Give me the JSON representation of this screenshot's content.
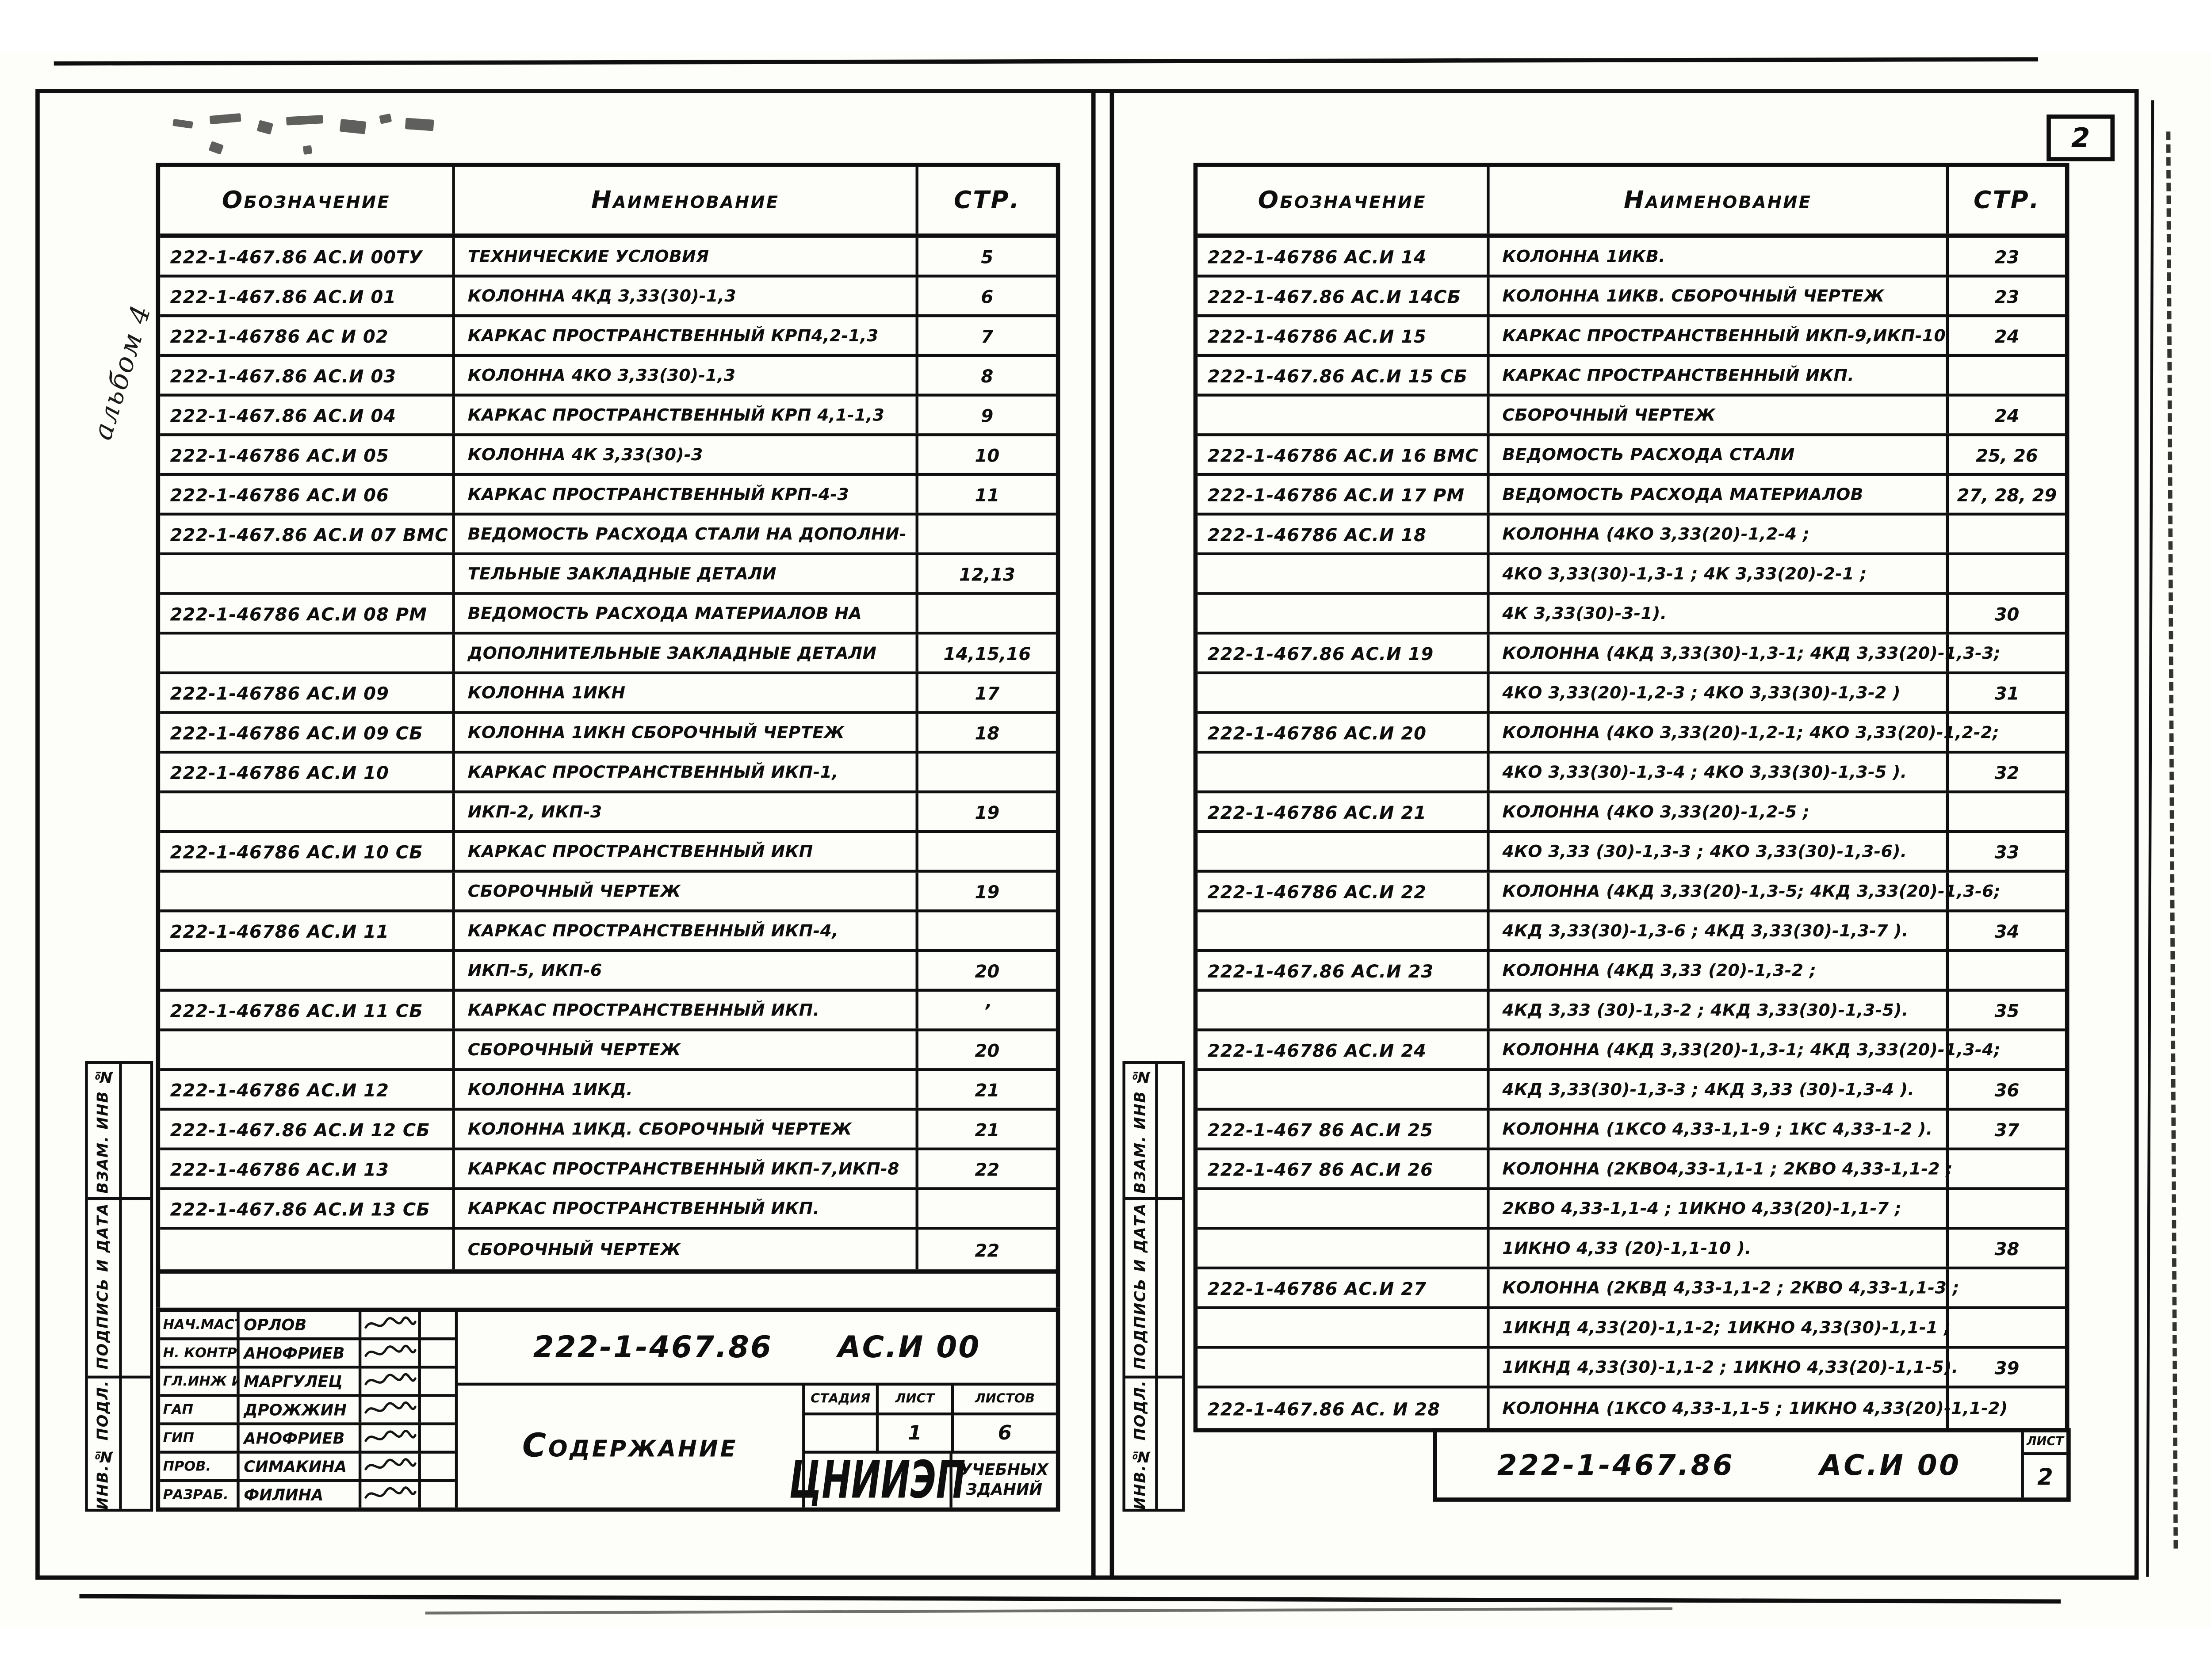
{
  "corner": {
    "page_number": "2"
  },
  "table_headers": {
    "designation": "Обозначение",
    "name": "Наименование",
    "page": "СТР."
  },
  "margin_labels": {
    "top": "ВЗАМ. ИНВ №",
    "middle": "ПОДПИСЬ И ДАТА",
    "bottom": "ИНВ.№ ПОДЛ.",
    "handwritten_note": "альбом 4"
  },
  "left_table": {
    "rows": [
      {
        "d": "222-1-467.86 АС.И 00ТУ",
        "n": "ТЕХНИЧЕСКИЕ  УСЛОВИЯ",
        "p": "5"
      },
      {
        "d": "222-1-467.86  АС.И 01",
        "n": "КОЛОННА  4КД 3,33(30)-1,3",
        "p": "6"
      },
      {
        "d": "222-1-46786  АС И 02",
        "n": "КАРКАС  ПРОСТРАНСТВЕННЫЙ  КРП4,2-1,3",
        "p": "7"
      },
      {
        "d": "222-1-467.86  АС.И 03",
        "n": "КОЛОННА  4КО 3,33(30)-1,3",
        "p": "8"
      },
      {
        "d": "222-1-467.86  АС.И 04",
        "n": "КАРКАС  ПРОСТРАНСТВЕННЫЙ  КРП 4,1-1,3",
        "p": "9"
      },
      {
        "d": "222-1-46786  АС.И 05",
        "n": "КОЛОННА  4К 3,33(30)-3",
        "p": "10"
      },
      {
        "d": "222-1-46786  АС.И 06",
        "n": "КАРКАС  ПРОСТРАНСТВЕННЫЙ  КРП-4-3",
        "p": "11"
      },
      {
        "d": "222-1-467.86  АС.И 07 ВМС",
        "n": "ВЕДОМОСТЬ  РАСХОДА  СТАЛИ  НА  ДОПОЛНИ-",
        "p": ""
      },
      {
        "d": "",
        "n": "ТЕЛЬНЫЕ  ЗАКЛАДНЫЕ  ДЕТАЛИ",
        "p": "12,13"
      },
      {
        "d": "222-1-46786  АС.И 08 РМ",
        "n": "ВЕДОМОСТЬ  РАСХОДА  МАТЕРИАЛОВ  НА",
        "p": ""
      },
      {
        "d": "",
        "n": "ДОПОЛНИТЕЛЬНЫЕ  ЗАКЛАДНЫЕ  ДЕТАЛИ",
        "p": "14,15,16"
      },
      {
        "d": "222-1-46786 АС.И 09",
        "n": "КОЛОННА  1ИКН",
        "p": "17"
      },
      {
        "d": "222-1-46786  АС.И 09 СБ",
        "n": "КОЛОННА 1ИКН СБОРОЧНЫЙ  ЧЕРТЕЖ",
        "p": "18"
      },
      {
        "d": "222-1-46786  АС.И 10",
        "n": "КАРКАС ПРОСТРАНСТВЕННЫЙ  ИКП-1,",
        "p": ""
      },
      {
        "d": "",
        "n": "ИКП-2, ИКП-3",
        "p": "19"
      },
      {
        "d": "222-1-46786  АС.И 10 СБ",
        "n": "КАРКАС ПРОСТРАНСТВЕННЫЙ   ИКП",
        "p": ""
      },
      {
        "d": "",
        "n": "СБОРОЧНЫЙ  ЧЕРТЕЖ",
        "p": "19"
      },
      {
        "d": "222-1-46786  АС.И 11",
        "n": "КАРКАС  ПРОСТРАНСТВЕННЫЙ ИКП-4,",
        "p": ""
      },
      {
        "d": "",
        "n": "ИКП-5, ИКП-6",
        "p": "20"
      },
      {
        "d": "222-1-46786 АС.И 11 СБ",
        "n": "КАРКАС ПРОСТРАНСТВЕННЫЙ  ИКП.",
        "p": "’"
      },
      {
        "d": "",
        "n": "СБОРОЧНЫЙ  ЧЕРТЕЖ",
        "p": "20"
      },
      {
        "d": "222-1-46786  АС.И 12",
        "n": "КОЛОННА  1ИКД.",
        "p": "21"
      },
      {
        "d": "222-1-467.86  АС.И 12 СБ",
        "n": "КОЛОННА 1ИКД. СБОРОЧНЫЙ  ЧЕРТЕЖ",
        "p": "21"
      },
      {
        "d": "222-1-46786 АС.И 13",
        "n": "КАРКАС  ПРОСТРАНСТВЕННЫЙ  ИКП-7,ИКП-8",
        "p": "22"
      },
      {
        "d": "222-1-467.86 АС.И 13 СБ",
        "n": "КАРКАС ПРОСТРАНСТВЕННЫЙ  ИКП.",
        "p": ""
      },
      {
        "d": "",
        "n": "СБОРОЧНЫЙ  ЧЕРТЕЖ",
        "p": "22"
      }
    ]
  },
  "right_table": {
    "rows": [
      {
        "d": "222-1-46786 АС.И 14",
        "n": "КОЛОННА  1ИКВ.",
        "p": "23"
      },
      {
        "d": "222-1-467.86  АС.И 14СБ",
        "n": "КОЛОННА 1ИКВ. СБОРОЧНЫЙ  ЧЕРТЕЖ",
        "p": "23"
      },
      {
        "d": "222-1-46786  АС.И 15",
        "n": "КАРКАС ПРОСТРАНСТВЕННЫЙ  ИКП-9,ИКП-10",
        "p": "24"
      },
      {
        "d": "222-1-467.86  АС.И 15 СБ",
        "n": "КАРКАС ПРОСТРАНСТВЕННЫЙ  ИКП.",
        "p": ""
      },
      {
        "d": "",
        "n": "СБОРОЧНЫЙ  ЧЕРТЕЖ",
        "p": "24"
      },
      {
        "d": "222-1-46786  АС.И 16 ВМС",
        "n": "ВЕДОМОСТЬ  РАСХОДА  СТАЛИ",
        "p": "25, 26"
      },
      {
        "d": "222-1-46786  АС.И 17 РМ",
        "n": "ВЕДОМОСТЬ  РАСХОДА   МАТЕРИАЛОВ",
        "p": "27, 28, 29"
      },
      {
        "d": "222-1-46786  АС.И 18",
        "n": "КОЛОННА (4КО 3,33(20)-1,2-4 ;",
        "p": ""
      },
      {
        "d": "",
        "n": "4КО 3,33(30)-1,3-1 ;  4К 3,33(20)-2-1 ;",
        "p": ""
      },
      {
        "d": "",
        "n": "4К 3,33(30)-3-1).",
        "p": "30"
      },
      {
        "d": "222-1-467.86  АС.И 19",
        "n": "КОЛОННА (4КД 3,33(30)-1,3-1; 4КД 3,33(20)-1,3-3;",
        "p": ""
      },
      {
        "d": "",
        "n": "4КО 3,33(20)-1,2-3 ; 4КО 3,33(30)-1,3-2 )",
        "p": "31"
      },
      {
        "d": "222-1-46786  АС.И 20",
        "n": "КОЛОННА (4КО 3,33(20)-1,2-1; 4КО 3,33(20)-1,2-2;",
        "p": ""
      },
      {
        "d": "",
        "n": "4КО 3,33(30)-1,3-4 ; 4КО 3,33(30)-1,3-5 ).",
        "p": "32"
      },
      {
        "d": "222-1-46786  АС.И 21",
        "n": "КОЛОННА (4КО 3,33(20)-1,2-5 ;",
        "p": ""
      },
      {
        "d": "",
        "n": "4КО 3,33 (30)-1,3-3 ; 4КО 3,33(30)-1,3-6).",
        "p": "33"
      },
      {
        "d": "222-1-46786  АС.И 22",
        "n": "КОЛОННА (4КД 3,33(20)-1,3-5; 4КД 3,33(20)-1,3-6;",
        "p": ""
      },
      {
        "d": "",
        "n": "4КД 3,33(30)-1,3-6 ; 4КД 3,33(30)-1,3-7 ).",
        "p": "34"
      },
      {
        "d": "222-1-467.86  АС.И 23",
        "n": "КОЛОННА  (4КД 3,33 (20)-1,3-2 ;",
        "p": ""
      },
      {
        "d": "",
        "n": "4КД 3,33 (30)-1,3-2 ; 4КД 3,33(30)-1,3-5).",
        "p": "35"
      },
      {
        "d": "222-1-46786  АС.И 24",
        "n": "КОЛОННА (4КД 3,33(20)-1,3-1; 4КД 3,33(20)-1,3-4;",
        "p": ""
      },
      {
        "d": "",
        "n": "4КД 3,33(30)-1,3-3 ; 4КД 3,33 (30)-1,3-4 ).",
        "p": "36"
      },
      {
        "d": "222-1-467 86  АС.И 25",
        "n": "КОЛОННА (1КСО 4,33-1,1-9 ; 1КС 4,33-1-2 ).",
        "p": "37"
      },
      {
        "d": "222-1-467 86   АС.И 26",
        "n": "КОЛОННА (2КВО4,33-1,1-1 ; 2КВО 4,33-1,1-2 ;",
        "p": ""
      },
      {
        "d": "",
        "n": "2КВО 4,33-1,1-4 ;  1ИКНО 4,33(20)-1,1-7 ;",
        "p": ""
      },
      {
        "d": "",
        "n": "1ИКНО 4,33 (20)-1,1-10 ).",
        "p": "38"
      },
      {
        "d": "222-1-46786 АС.И 27",
        "n": "КОЛОННА (2КВД 4,33-1,1-2 ; 2КВО 4,33-1,1-3 ;",
        "p": ""
      },
      {
        "d": "",
        "n": "1ИКНД 4,33(20)-1,1-2; 1ИКНО 4,33(30)-1,1-1 ;",
        "p": ""
      },
      {
        "d": "",
        "n": "1ИКНД 4,33(30)-1,1-2 ; 1ИКНО 4,33(20)-1,1-5).",
        "p": "39"
      },
      {
        "d": "222-1-467.86 АС. И 28",
        "n": "КОЛОННА (1КСО 4,33-1,1-5 ; 1ИКНО 4,33(20)-1,1-2)",
        "p": ""
      }
    ]
  },
  "left_title_block": {
    "doc_number": "222-1-467.86",
    "doc_code": "АС.И 00",
    "title": "Содержание",
    "stage_label": "СТАДИЯ",
    "sheet_label": "ЛИСТ",
    "sheets_label": "ЛИСТОВ",
    "stage_value": "",
    "sheet_value": "1",
    "sheets_value": "6",
    "org_name": "ЦНИИЭП",
    "org_qualifier_line1": "УЧЕБНЫХ",
    "org_qualifier_line2": "ЗДАНИЙ",
    "people": [
      {
        "role": "НАЧ.МАСТ",
        "name": "ОРЛОВ"
      },
      {
        "role": "Н. КОНТР.",
        "name": "АНОФРИЕВ"
      },
      {
        "role": "ГЛ.ИНЖ И",
        "name": "МАРГУЛЕЦ"
      },
      {
        "role": "ГАП",
        "name": "ДРОЖЖИН"
      },
      {
        "role": "ГИП",
        "name": "АНОФРИЕВ"
      },
      {
        "role": "ПРОВ.",
        "name": "СИМАКИНА"
      },
      {
        "role": "РАЗРАБ.",
        "name": "ФИЛИНА"
      }
    ]
  },
  "right_title_block": {
    "doc_number": "222-1-467.86",
    "doc_code": "АС.И 00",
    "sheet_label": "ЛИСТ",
    "sheet_value": "2"
  }
}
